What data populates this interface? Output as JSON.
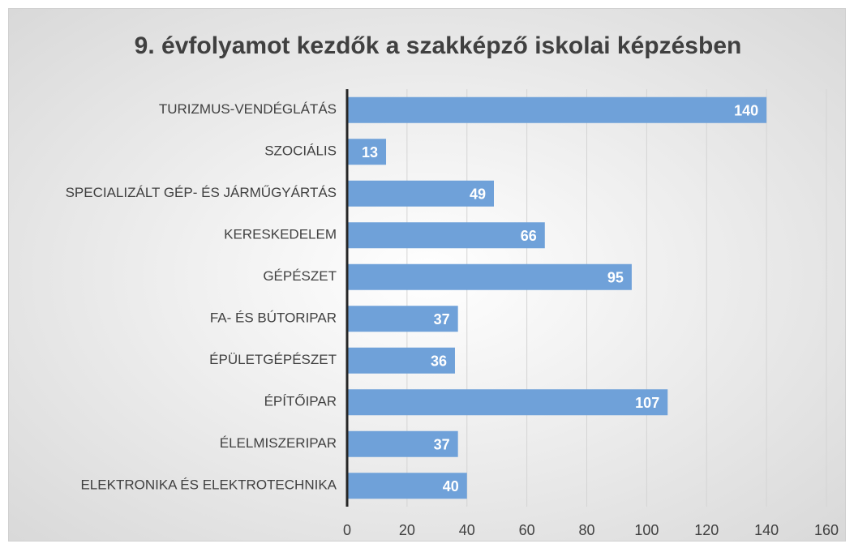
{
  "chart_data": {
    "type": "bar",
    "orientation": "horizontal",
    "title": "9. évfolyamot kezdők a szakképző iskolai képzésben",
    "categories": [
      "TURIZMUS-VENDÉGLÁTÁS",
      "SZOCIÁLIS",
      "SPECIALIZÁLT GÉP- ÉS JÁRMŰGYÁRTÁS",
      "KERESKEDELEM",
      "GÉPÉSZET",
      "FA- ÉS BÚTORIPAR",
      "ÉPÜLETGÉPÉSZET",
      "ÉPÍTŐIPAR",
      "ÉLELMISZERIPAR",
      "ELEKTRONIKA ÉS ELEKTROTECHNIKA"
    ],
    "values": [
      140,
      13,
      49,
      66,
      95,
      37,
      36,
      107,
      37,
      40
    ],
    "color": "#6fa1d9",
    "xlim": [
      0,
      160
    ],
    "xticks": [
      0,
      20,
      40,
      60,
      80,
      100,
      120,
      140,
      160
    ],
    "grid": true
  }
}
